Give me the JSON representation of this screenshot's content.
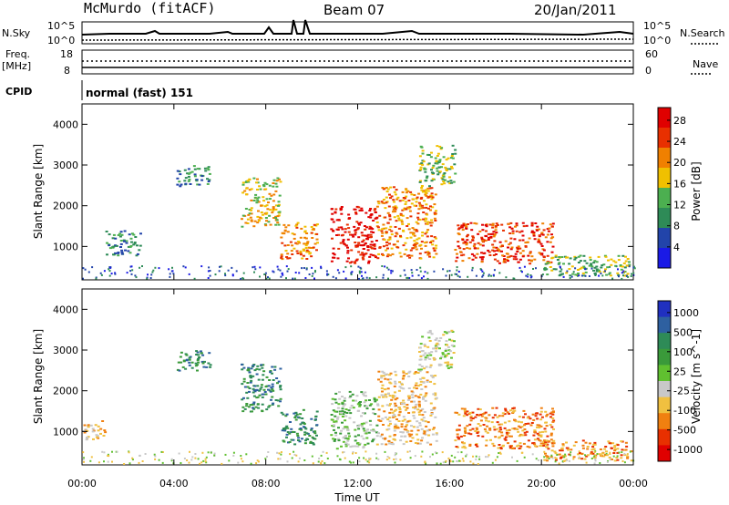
{
  "header": {
    "station": "McMurdo (fitACF)",
    "beam": "Beam 07",
    "date": "20/Jan/2011"
  },
  "status_panels": {
    "nsky_label": "N.Sky",
    "nsky_ticks": [
      "10^5",
      "10^0"
    ],
    "nsearch_label": "N.Search",
    "nsearch_ticks": [
      "10^5",
      "10^0"
    ],
    "freq_label_1": "Freq.",
    "freq_label_2": "[MHz]",
    "freq_ticks": [
      "18",
      "8"
    ],
    "nave_label": "Nave",
    "nave_ticks": [
      "60",
      "0"
    ],
    "cpid_label": "CPID",
    "cpid_value": "normal (fast) 151"
  },
  "chart_data": [
    {
      "type": "heatmap",
      "panel": "power",
      "ylabel": "Slant Range [km]",
      "xlabel": "",
      "y_ticks": [
        "1000",
        "2000",
        "3000",
        "4000"
      ],
      "ylim": [
        180,
        4500
      ],
      "xlim": [
        0,
        24
      ],
      "colorbar_label": "Power [dB]",
      "colorbar_ticks": [
        "4",
        "8",
        "12",
        "16",
        "20",
        "24",
        "28"
      ],
      "colorbar_range": [
        0,
        30
      ],
      "colors": [
        "#1a1ae6",
        "#2244aa",
        "#2e8b57",
        "#4caf50",
        "#f0c000",
        "#f08000",
        "#e83000",
        "#e00000"
      ],
      "echo_regions": [
        {
          "t0": 4.1,
          "t1": 5.6,
          "r0": 2500,
          "r1": 3000,
          "level": 2
        },
        {
          "t0": 6.9,
          "t1": 8.6,
          "r0": 1500,
          "r1": 2700,
          "level": 4
        },
        {
          "t0": 8.6,
          "t1": 10.2,
          "r0": 700,
          "r1": 1600,
          "level": 5
        },
        {
          "t0": 10.8,
          "t1": 12.8,
          "r0": 600,
          "r1": 2000,
          "level": 7
        },
        {
          "t0": 12.8,
          "t1": 15.4,
          "r0": 700,
          "r1": 2500,
          "level": 5
        },
        {
          "t0": 14.6,
          "t1": 16.2,
          "r0": 2500,
          "r1": 3500,
          "level": 3
        },
        {
          "t0": 16.2,
          "t1": 20.5,
          "r0": 600,
          "r1": 1600,
          "level": 6
        },
        {
          "t0": 20.0,
          "t1": 24.0,
          "r0": 300,
          "r1": 800,
          "level": 3
        },
        {
          "t0": 1.0,
          "t1": 2.6,
          "r0": 800,
          "r1": 1400,
          "level": 2
        }
      ]
    },
    {
      "type": "heatmap",
      "panel": "velocity",
      "ylabel": "Slant Range [km]",
      "xlabel": "Time UT",
      "x_ticks": [
        "00:00",
        "04:00",
        "08:00",
        "12:00",
        "16:00",
        "20:00",
        "00:00"
      ],
      "y_ticks": [
        "1000",
        "2000",
        "3000",
        "4000"
      ],
      "ylim": [
        180,
        4500
      ],
      "xlim": [
        0,
        24
      ],
      "colorbar_label": "Velocity [m s^-1]",
      "colorbar_ticks": [
        "1000",
        "500",
        "100",
        "25",
        "-25",
        "-100",
        "-500",
        "-1000"
      ],
      "colorbar_range": [
        -1000,
        1000
      ],
      "colors": [
        "#2030c0",
        "#2e60a0",
        "#2e8b57",
        "#3a9a3a",
        "#60c030",
        "#c8c8c8",
        "#f0c040",
        "#f08010",
        "#e83000",
        "#e00000"
      ],
      "echo_regions": [
        {
          "t0": 4.1,
          "t1": 5.6,
          "r0": 2500,
          "r1": 3000,
          "level": 2
        },
        {
          "t0": 6.9,
          "t1": 8.6,
          "r0": 1500,
          "r1": 2700,
          "level": 2
        },
        {
          "t0": 8.6,
          "t1": 10.2,
          "r0": 700,
          "r1": 1600,
          "level": 2
        },
        {
          "t0": 10.8,
          "t1": 12.8,
          "r0": 600,
          "r1": 2000,
          "level": 4
        },
        {
          "t0": 12.8,
          "t1": 15.4,
          "r0": 700,
          "r1": 2500,
          "level": 6
        },
        {
          "t0": 14.6,
          "t1": 16.2,
          "r0": 2500,
          "r1": 3500,
          "level": 5
        },
        {
          "t0": 16.2,
          "t1": 20.5,
          "r0": 600,
          "r1": 1600,
          "level": 7
        },
        {
          "t0": 20.0,
          "t1": 24.0,
          "r0": 300,
          "r1": 800,
          "level": 7
        },
        {
          "t0": 0.0,
          "t1": 1.0,
          "r0": 800,
          "r1": 1300,
          "level": 6
        }
      ]
    }
  ]
}
